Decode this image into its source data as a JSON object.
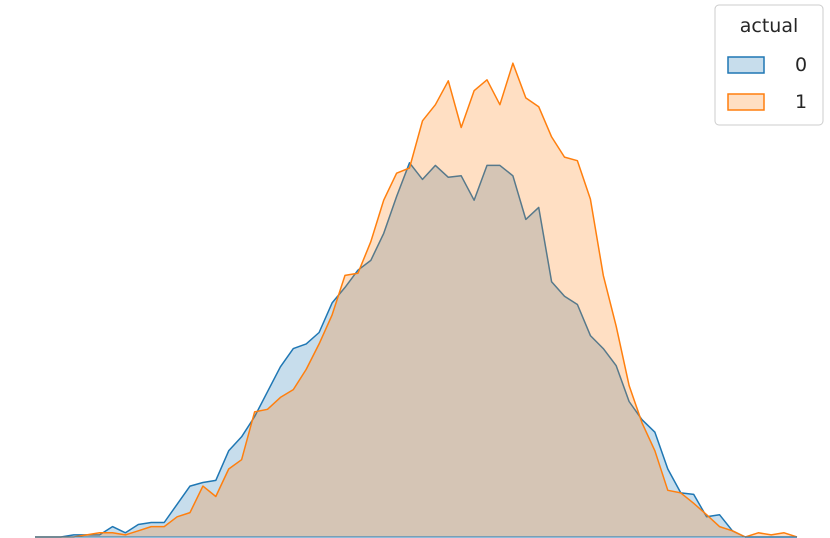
{
  "chart_data": {
    "type": "area",
    "title": "",
    "xlabel": "",
    "ylabel": "",
    "axes_visible": false,
    "grid": false,
    "ylim": [
      0,
      100
    ],
    "legend": {
      "title": "actual",
      "placement": "top-right"
    },
    "colors": {
      "0": "#1f77b4",
      "1": "#ff7f0e",
      "overlap": "#c4c1bb"
    },
    "x": [
      0,
      1,
      2,
      3,
      4,
      5,
      6,
      7,
      8,
      9,
      10,
      11,
      12,
      13,
      14,
      15,
      16,
      17,
      18,
      19,
      20,
      21,
      22,
      23,
      24,
      25,
      26,
      27,
      28,
      29,
      30,
      31,
      32,
      33,
      34,
      35,
      36,
      37,
      38,
      39,
      40,
      41,
      42,
      43,
      44,
      45,
      46,
      47,
      48,
      49,
      50,
      51,
      52,
      53,
      54,
      55,
      56,
      57,
      58,
      59
    ],
    "series": [
      {
        "name": "0",
        "values": [
          0.0,
          0.0,
          0.0,
          0.4,
          0.4,
          0.4,
          2.0,
          0.8,
          2.4,
          2.8,
          2.8,
          6.3,
          9.8,
          10.5,
          10.9,
          16.6,
          19.3,
          23.2,
          28.0,
          32.8,
          36.3,
          37.2,
          39.4,
          45.1,
          48.1,
          51.4,
          53.3,
          58.5,
          65.6,
          72.1,
          68.9,
          71.6,
          69.3,
          69.6,
          64.9,
          71.6,
          71.6,
          69.6,
          61.2,
          63.5,
          49.2,
          46.4,
          44.8,
          38.8,
          36.3,
          33.0,
          26.1,
          22.6,
          20.2,
          13.1,
          8.5,
          8.2,
          3.9,
          4.3,
          1.2,
          0.0,
          0.0,
          0.0,
          0.0,
          0.0
        ]
      },
      {
        "name": "1",
        "values": [
          0.0,
          0.0,
          0.0,
          0.0,
          0.4,
          0.8,
          0.8,
          0.4,
          1.2,
          2.0,
          2.0,
          3.9,
          4.7,
          9.8,
          7.8,
          13.1,
          14.9,
          24.1,
          24.6,
          26.9,
          28.4,
          32.3,
          37.2,
          42.8,
          50.4,
          50.8,
          56.9,
          64.9,
          70.1,
          71.1,
          80.2,
          83.3,
          87.9,
          78.9,
          86.0,
          88.1,
          83.3,
          91.3,
          84.6,
          82.9,
          77.1,
          73.2,
          72.5,
          65.1,
          50.4,
          40.6,
          29.2,
          22.0,
          16.6,
          9.0,
          8.5,
          6.5,
          4.3,
          2.0,
          1.2,
          0.0,
          0.8,
          0.4,
          0.8,
          0.0
        ]
      }
    ]
  }
}
